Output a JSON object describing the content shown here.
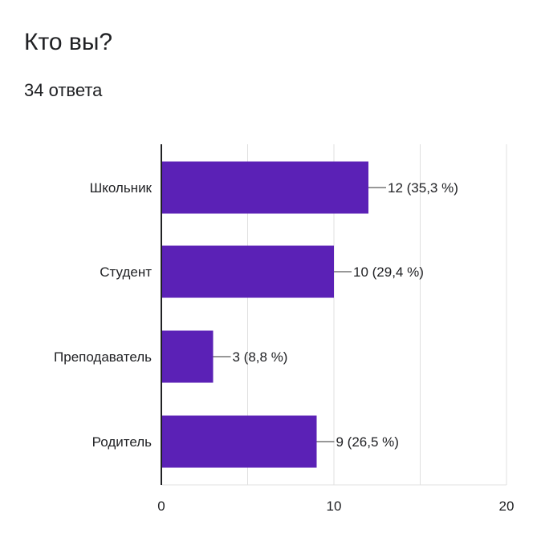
{
  "question": {
    "title": "Кто вы?",
    "responses": "34 ответа"
  },
  "colors": {
    "bar": "#5b21b6",
    "grid": "#e0e0e0",
    "axis": "#202124",
    "leader": "#777777"
  },
  "chart_data": {
    "type": "bar",
    "orientation": "horizontal",
    "categories": [
      "Школьник",
      "Студент",
      "Преподаватель",
      "Родитель"
    ],
    "values": [
      12,
      10,
      3,
      9
    ],
    "data_labels": [
      "12 (35,3 %)",
      "10 (29,4 %)",
      "3 (8,8 %)",
      "9 (26,5 %)"
    ],
    "xlim": [
      0,
      20
    ],
    "xticks": [
      0,
      10,
      20
    ],
    "gridlines_at": [
      0,
      5,
      10,
      15,
      20
    ],
    "grid": true,
    "legend": "none"
  }
}
